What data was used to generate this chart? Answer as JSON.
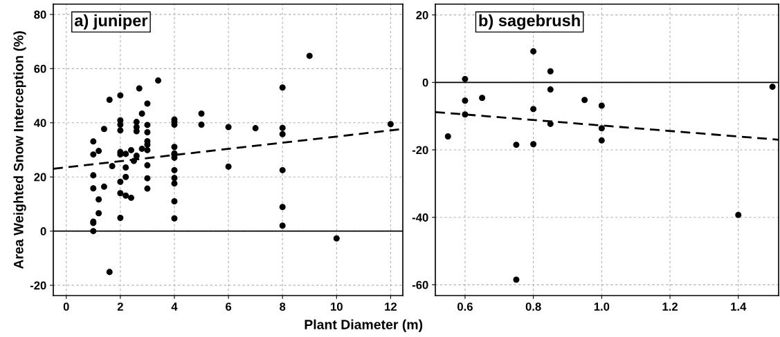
{
  "chart_data": [
    {
      "type": "scatter",
      "title": "a) juniper",
      "ylabel": "Area Weighted Snow Interception (%)",
      "xlabel": "Plant Diameter (m)",
      "xlim": [
        -0.48,
        12.45
      ],
      "ylim": [
        -23.8,
        83.8
      ],
      "xticks": [
        0,
        2,
        4,
        6,
        8,
        10,
        12
      ],
      "yticks": [
        -20,
        0,
        20,
        40,
        60,
        80
      ],
      "grid": true,
      "marker": "circle",
      "ref_lines": [
        {
          "axis": "y",
          "value": 0,
          "color": "#000000",
          "line_style": "solid"
        }
      ],
      "series": [
        {
          "color": "#000000",
          "x": [
            1,
            1,
            1,
            1,
            1,
            1,
            1,
            1.2,
            1.2,
            1.2,
            1.4,
            1.4,
            1.6,
            1.6,
            1.7,
            2,
            2,
            2,
            2,
            2,
            2,
            2,
            2,
            2,
            2.2,
            2.2,
            2.2,
            2.2,
            2.4,
            2.4,
            2.5,
            2.6,
            2.6,
            2.6,
            2.6,
            2.7,
            2.8,
            2.8,
            3,
            3,
            3,
            3,
            3,
            3,
            3,
            3,
            3,
            3.4,
            4,
            4,
            4,
            4,
            4,
            4,
            4,
            4,
            4,
            4,
            4,
            4,
            5,
            5,
            6,
            6,
            7,
            8,
            8,
            8,
            8,
            8,
            8,
            9,
            10,
            12
          ],
          "values": [
            33.1,
            28.3,
            20.6,
            15.8,
            3.5,
            3.0,
            0,
            29.6,
            11.7,
            6.6,
            37.7,
            16.4,
            48.5,
            -15.1,
            24.0,
            50.1,
            40.9,
            39.3,
            37.2,
            29.2,
            28.3,
            18.2,
            14.0,
            4.9,
            28.5,
            23.5,
            20.0,
            13.1,
            29.9,
            12.3,
            25.9,
            40.3,
            38.4,
            36.9,
            27.8,
            52.7,
            43.4,
            30.4,
            47.1,
            39.2,
            36.5,
            33.2,
            31.9,
            29.9,
            24.3,
            19.5,
            15.7,
            55.6,
            41.2,
            40.3,
            39.3,
            31.1,
            28.7,
            28.2,
            27.1,
            22.5,
            19.6,
            17.6,
            11.0,
            4.7,
            43.4,
            39.3,
            38.4,
            23.8,
            38.0,
            53.0,
            38.1,
            35.8,
            22.5,
            8.9,
            2.0,
            64.7,
            -2.7,
            39.5
          ]
        },
        {
          "type": "line",
          "color": "#000000",
          "line_style": "dashed",
          "marker": "none",
          "x": [
            -0.48,
            12.45
          ],
          "values": [
            23.0,
            37.7
          ]
        }
      ]
    },
    {
      "type": "scatter",
      "title": "b) sagebrush",
      "xlim": [
        0.513,
        1.518
      ],
      "ylim": [
        -63.2,
        23.2
      ],
      "xticks": [
        {
          "value": 0.6,
          "label": "0.6"
        },
        {
          "value": 0.8,
          "label": "0.8"
        },
        {
          "value": 1,
          "label": "1.0"
        },
        {
          "value": 1.2,
          "label": "1.2"
        },
        {
          "value": 1.4,
          "label": "1.4"
        }
      ],
      "yticks": [
        -60,
        -40,
        -20,
        0,
        20
      ],
      "grid": true,
      "marker": "circle",
      "ref_lines": [
        {
          "axis": "y",
          "value": 0,
          "color": "#000000",
          "line_style": "solid"
        }
      ],
      "series": [
        {
          "color": "#000000",
          "x": [
            0.55,
            0.6,
            0.6,
            0.6,
            0.65,
            0.75,
            0.75,
            0.8,
            0.8,
            0.8,
            0.85,
            0.85,
            0.85,
            0.95,
            1,
            1,
            1,
            1.4,
            1.5
          ],
          "values": [
            -16.0,
            1.0,
            -5.4,
            -9.5,
            -4.6,
            -18.5,
            -58.5,
            9.2,
            -7.9,
            -18.3,
            3.3,
            -2.1,
            -12.3,
            -5.2,
            -6.9,
            -13.6,
            -17.2,
            -39.3,
            -1.3
          ]
        },
        {
          "type": "line",
          "color": "#000000",
          "line_style": "dashed",
          "marker": "none",
          "x": [
            0.513,
            1.518
          ],
          "values": [
            -8.8,
            -17.0
          ]
        }
      ]
    }
  ]
}
